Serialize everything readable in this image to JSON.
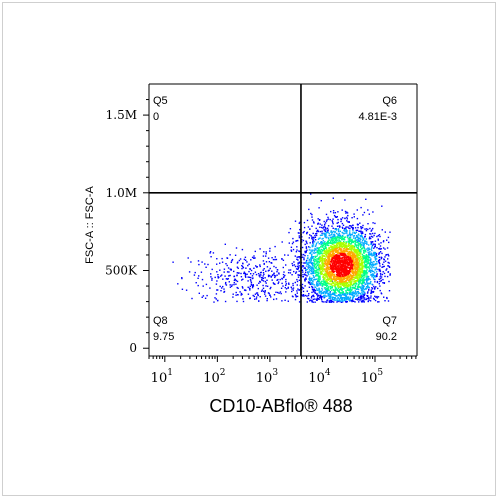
{
  "chart_data": {
    "type": "scatter",
    "title": "",
    "xlabel": "CD10-ABflo® 488",
    "ylabel": "FSC-A :: FSC-A",
    "x_scale": "log",
    "xlim": [
      5,
      630000
    ],
    "ylim": [
      -50000,
      1700000
    ],
    "x_ticks": [
      {
        "base": "10",
        "exp": "1",
        "value": 10
      },
      {
        "base": "10",
        "exp": "2",
        "value": 100
      },
      {
        "base": "10",
        "exp": "3",
        "value": 1000
      },
      {
        "base": "10",
        "exp": "4",
        "value": 10000
      },
      {
        "base": "10",
        "exp": "5",
        "value": 100000
      }
    ],
    "y_ticks": [
      {
        "label": "0",
        "value": 0
      },
      {
        "label": "500K",
        "value": 500000
      },
      {
        "label": "1.0M",
        "value": 1000000
      },
      {
        "label": "1.5M",
        "value": 1500000
      }
    ],
    "gates": {
      "x": 3900,
      "y": 1000000
    },
    "quadrants": [
      {
        "name": "Q5",
        "value": "0",
        "position": "top-left"
      },
      {
        "name": "Q6",
        "value": "4.81E-3",
        "position": "top-right"
      },
      {
        "name": "Q7",
        "value": "90.2",
        "position": "bottom-right"
      },
      {
        "name": "Q8",
        "value": "9.75",
        "position": "bottom-left"
      }
    ],
    "populations": [
      {
        "description": "CD10-positive main cluster",
        "x_center_log10": 4.35,
        "x_sd_log10": 0.38,
        "y_center": 540000,
        "y_sd": 130000,
        "share": 0.902
      },
      {
        "description": "CD10-negative low cluster",
        "x_center_log10": 2.6,
        "x_sd_log10": 0.55,
        "y_center": 460000,
        "y_sd": 90000,
        "share": 0.0975
      }
    ],
    "density_colormap": [
      "#0000ff",
      "#00aaff",
      "#00ff88",
      "#aaff00",
      "#ffaa00",
      "#ff0000"
    ],
    "grid": false,
    "legend": "none"
  }
}
